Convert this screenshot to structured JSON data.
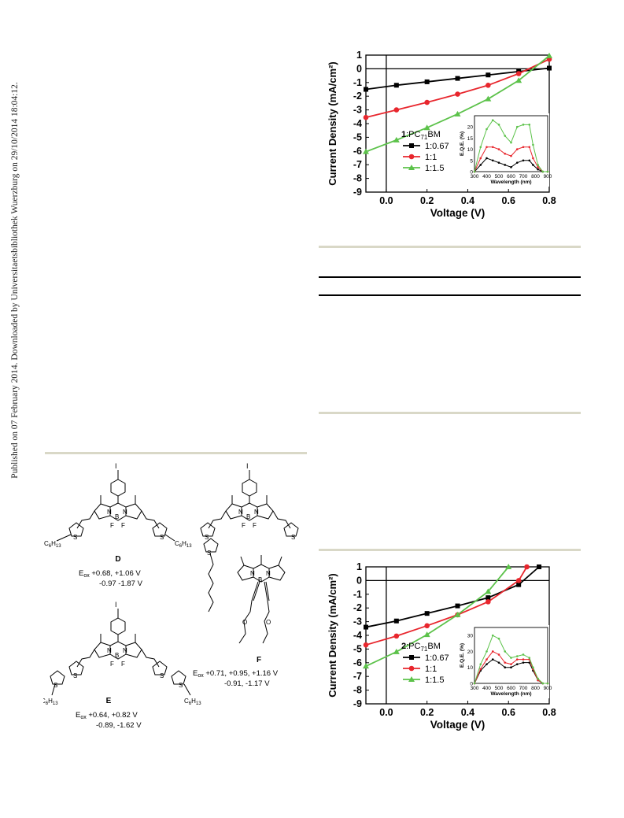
{
  "side_note": "Published on 07 February 2014. Downloaded by Universitaetsbibliothek Wuerzburg on 29/10/2014 18:04:12.",
  "chart_data": [
    {
      "type": "line",
      "ylabel": "Current Density (mA/cm²)",
      "xlabel": "Voltage (V)",
      "xlim": [
        -0.1,
        0.8
      ],
      "ylim": [
        -9,
        1
      ],
      "xticks": [
        "0.0",
        "0.2",
        "0.4",
        "0.6",
        "0.8"
      ],
      "yticks": [
        "1",
        "0",
        "-1",
        "-2",
        "-3",
        "-4",
        "-5",
        "-6",
        "-7",
        "-8",
        "-9"
      ],
      "legend_title_num": "1",
      "legend_title_rest": ":PC",
      "legend_title_sub": "71",
      "legend_title_end": "BM",
      "series": [
        {
          "name": "1:0.67",
          "color": "#000000",
          "marker": "square",
          "x": [
            -0.1,
            0.05,
            0.2,
            0.35,
            0.5,
            0.65,
            0.8
          ],
          "y": [
            -1.5,
            -1.2,
            -0.95,
            -0.7,
            -0.45,
            -0.2,
            0.05
          ]
        },
        {
          "name": "1:1",
          "color": "#e8262d",
          "marker": "circle",
          "x": [
            -0.1,
            0.05,
            0.2,
            0.35,
            0.5,
            0.65,
            0.8
          ],
          "y": [
            -3.55,
            -3.0,
            -2.45,
            -1.85,
            -1.2,
            -0.35,
            0.7
          ]
        },
        {
          "name": "1:1.5",
          "color": "#5cc24a",
          "marker": "triangle",
          "x": [
            -0.1,
            0.05,
            0.2,
            0.35,
            0.5,
            0.65,
            0.8
          ],
          "y": [
            -6.05,
            -5.2,
            -4.3,
            -3.3,
            -2.2,
            -0.85,
            0.95
          ]
        }
      ],
      "inset": {
        "ylabel": "E.Q.E. (%)",
        "xlabel": "Wavelength (nm)",
        "xlim": [
          300,
          900
        ],
        "ylim": [
          0,
          25
        ],
        "xticks": [
          "300",
          "400",
          "500",
          "600",
          "700",
          "800",
          "900"
        ],
        "yticks": [
          "0",
          "5",
          "10",
          "15",
          "20"
        ],
        "series": [
          {
            "color": "#000000",
            "x": [
              300,
              350,
              400,
              450,
              500,
              550,
              600,
              650,
              700,
              750,
              780,
              820,
              860,
              900
            ],
            "y": [
              0,
              3,
              6,
              5,
              4,
              3,
              2,
              4,
              5,
              5,
              3,
              1,
              0,
              0
            ]
          },
          {
            "color": "#e8262d",
            "x": [
              300,
              350,
              400,
              450,
              500,
              550,
              600,
              650,
              700,
              750,
              780,
              820,
              860,
              900
            ],
            "y": [
              0,
              6,
              11,
              11,
              10,
              8,
              7,
              10,
              11,
              11,
              6,
              2,
              0,
              0
            ]
          },
          {
            "color": "#5cc24a",
            "x": [
              300,
              350,
              400,
              450,
              500,
              550,
              600,
              650,
              700,
              750,
              780,
              820,
              860,
              900
            ],
            "y": [
              0,
              11,
              19,
              23,
              21,
              16,
              13,
              20,
              21,
              21,
              12,
              3,
              0,
              0
            ]
          }
        ]
      }
    },
    {
      "type": "line",
      "ylabel": "Current Density (mA/cm²)",
      "xlabel": "Voltage (V)",
      "xlim": [
        -0.1,
        0.8
      ],
      "ylim": [
        -9,
        1
      ],
      "xticks": [
        "0.0",
        "0.2",
        "0.4",
        "0.6",
        "0.8"
      ],
      "yticks": [
        "1",
        "0",
        "-1",
        "-2",
        "-3",
        "-4",
        "-5",
        "-6",
        "-7",
        "-8",
        "-9"
      ],
      "legend_title_num": "2",
      "legend_title_rest": ":PC",
      "legend_title_sub": "71",
      "legend_title_end": "BM",
      "series": [
        {
          "name": "1:0.67",
          "color": "#000000",
          "marker": "square",
          "x": [
            -0.1,
            0.05,
            0.2,
            0.35,
            0.5,
            0.65,
            0.75
          ],
          "y": [
            -3.4,
            -2.95,
            -2.4,
            -1.85,
            -1.25,
            -0.3,
            1.0
          ]
        },
        {
          "name": "1:1",
          "color": "#e8262d",
          "marker": "circle",
          "x": [
            -0.1,
            0.05,
            0.2,
            0.35,
            0.5,
            0.65,
            0.69
          ],
          "y": [
            -4.7,
            -4.05,
            -3.3,
            -2.5,
            -1.55,
            0.0,
            1.0
          ]
        },
        {
          "name": "1:1.5",
          "color": "#5cc24a",
          "marker": "triangle",
          "x": [
            -0.1,
            0.05,
            0.2,
            0.35,
            0.5,
            0.6
          ],
          "y": [
            -6.25,
            -5.2,
            -3.95,
            -2.5,
            -0.8,
            1.0
          ]
        }
      ],
      "inset": {
        "ylabel": "E.Q.E. (%)",
        "xlabel": "Wavelength (nm)",
        "xlim": [
          300,
          900
        ],
        "ylim": [
          0,
          35
        ],
        "xticks": [
          "300",
          "400",
          "500",
          "600",
          "700",
          "800",
          "900"
        ],
        "yticks": [
          "0",
          "10",
          "20",
          "30"
        ],
        "series": [
          {
            "color": "#000000",
            "x": [
              300,
              350,
              400,
              450,
              500,
              550,
              600,
              650,
              700,
              750,
              780,
              820,
              860,
              900
            ],
            "y": [
              0,
              8,
              12,
              15,
              13,
              10,
              10,
              12,
              13,
              13,
              8,
              2,
              0,
              0
            ]
          },
          {
            "color": "#e8262d",
            "x": [
              300,
              350,
              400,
              450,
              500,
              550,
              600,
              650,
              700,
              750,
              780,
              820,
              860,
              900
            ],
            "y": [
              0,
              9,
              15,
              20,
              18,
              13,
              12,
              15,
              15,
              15,
              9,
              2,
              0,
              0
            ]
          },
          {
            "color": "#5cc24a",
            "x": [
              300,
              350,
              400,
              450,
              500,
              550,
              600,
              650,
              700,
              750,
              780,
              820,
              860,
              900
            ],
            "y": [
              0,
              12,
              20,
              30,
              28,
              20,
              16,
              17,
              18,
              16,
              10,
              3,
              0,
              0
            ]
          }
        ]
      }
    }
  ],
  "molecules": {
    "D": {
      "label": "D",
      "ox": "E",
      "ox_sub": "ox",
      "line1": " +0.68, +1.06 V",
      "line2": "-0.97 -1.87 V"
    },
    "E": {
      "label": "E",
      "ox": "E",
      "ox_sub": "ox",
      "line1": " +0.64, +0.82 V",
      "line2": "-0.89, -1.62 V"
    },
    "F": {
      "label": "F",
      "ox": "E",
      "ox_sub": "ox",
      "line1": " +0.71, +0.95, +1.16 V",
      "line2": "-0.91, -1.17 V"
    }
  },
  "atom_labels": {
    "iodine": "I",
    "nitrogen": "N",
    "boron": "B",
    "fluorine": "F",
    "sulfur": "S",
    "hexyl": "C",
    "hexyl_sub": "6",
    "hexyl_sub2": "H",
    "hexyl_sub3": "13",
    "oxygen": "O",
    "minus": "−"
  }
}
